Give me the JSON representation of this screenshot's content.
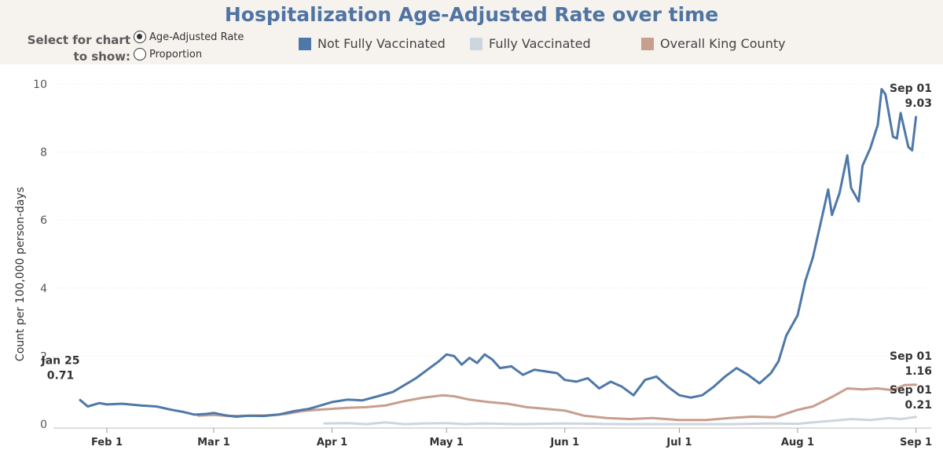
{
  "title": "Hospitalization Age-Adjusted Rate over time",
  "selector": {
    "label_line1": "Select for chart",
    "label_line2": "to show:",
    "options": [
      "Age-Adjusted Rate",
      "Proportion"
    ],
    "selected": "Age-Adjusted Rate"
  },
  "legend": [
    {
      "name": "Not Fully Vaccinated",
      "color": "#4e78a8"
    },
    {
      "name": "Fully Vaccinated",
      "color": "#cdd5df"
    },
    {
      "name": "Overall King County",
      "color": "#c89e8e"
    }
  ],
  "chart_data": {
    "type": "line",
    "ylabel": "Count per 100,000 person-days",
    "ylim": [
      0,
      10
    ],
    "yticks": [
      0,
      2,
      4,
      6,
      8,
      10
    ],
    "xticks": [
      {
        "date": "2021-02-01",
        "label": "Feb 1"
      },
      {
        "date": "2021-03-01",
        "label": "Mar 1"
      },
      {
        "date": "2021-04-01",
        "label": "Apr 1"
      },
      {
        "date": "2021-05-01",
        "label": "May 1"
      },
      {
        "date": "2021-06-01",
        "label": "Jun 1"
      },
      {
        "date": "2021-07-01",
        "label": "Jul 1"
      },
      {
        "date": "2021-08-01",
        "label": "Aug 1"
      },
      {
        "date": "2021-09-01",
        "label": "Sep 1"
      }
    ],
    "grid": true,
    "series": [
      {
        "name": "Not Fully Vaccinated",
        "color": "#4e78a8",
        "points": [
          [
            "2021-01-25",
            0.71
          ],
          [
            "2021-01-27",
            0.52
          ],
          [
            "2021-01-30",
            0.62
          ],
          [
            "2021-02-01",
            0.58
          ],
          [
            "2021-02-05",
            0.6
          ],
          [
            "2021-02-10",
            0.55
          ],
          [
            "2021-02-14",
            0.52
          ],
          [
            "2021-02-18",
            0.42
          ],
          [
            "2021-02-21",
            0.36
          ],
          [
            "2021-02-24",
            0.28
          ],
          [
            "2021-02-27",
            0.3
          ],
          [
            "2021-03-01",
            0.33
          ],
          [
            "2021-03-04",
            0.26
          ],
          [
            "2021-03-07",
            0.22
          ],
          [
            "2021-03-10",
            0.25
          ],
          [
            "2021-03-14",
            0.24
          ],
          [
            "2021-03-18",
            0.28
          ],
          [
            "2021-03-22",
            0.38
          ],
          [
            "2021-03-26",
            0.45
          ],
          [
            "2021-03-29",
            0.55
          ],
          [
            "2021-04-01",
            0.65
          ],
          [
            "2021-04-05",
            0.72
          ],
          [
            "2021-04-09",
            0.7
          ],
          [
            "2021-04-13",
            0.82
          ],
          [
            "2021-04-17",
            0.95
          ],
          [
            "2021-04-20",
            1.15
          ],
          [
            "2021-04-23",
            1.35
          ],
          [
            "2021-04-26",
            1.6
          ],
          [
            "2021-04-29",
            1.85
          ],
          [
            "2021-05-01",
            2.05
          ],
          [
            "2021-05-03",
            2.0
          ],
          [
            "2021-05-05",
            1.75
          ],
          [
            "2021-05-07",
            1.95
          ],
          [
            "2021-05-09",
            1.8
          ],
          [
            "2021-05-11",
            2.05
          ],
          [
            "2021-05-13",
            1.9
          ],
          [
            "2021-05-15",
            1.65
          ],
          [
            "2021-05-18",
            1.7
          ],
          [
            "2021-05-21",
            1.45
          ],
          [
            "2021-05-24",
            1.6
          ],
          [
            "2021-05-27",
            1.55
          ],
          [
            "2021-05-30",
            1.5
          ],
          [
            "2021-06-01",
            1.3
          ],
          [
            "2021-06-04",
            1.25
          ],
          [
            "2021-06-07",
            1.35
          ],
          [
            "2021-06-10",
            1.05
          ],
          [
            "2021-06-13",
            1.25
          ],
          [
            "2021-06-16",
            1.1
          ],
          [
            "2021-06-19",
            0.85
          ],
          [
            "2021-06-22",
            1.3
          ],
          [
            "2021-06-25",
            1.4
          ],
          [
            "2021-06-28",
            1.1
          ],
          [
            "2021-07-01",
            0.85
          ],
          [
            "2021-07-04",
            0.78
          ],
          [
            "2021-07-07",
            0.85
          ],
          [
            "2021-07-10",
            1.1
          ],
          [
            "2021-07-13",
            1.4
          ],
          [
            "2021-07-16",
            1.65
          ],
          [
            "2021-07-19",
            1.45
          ],
          [
            "2021-07-22",
            1.2
          ],
          [
            "2021-07-25",
            1.5
          ],
          [
            "2021-07-27",
            1.85
          ],
          [
            "2021-07-29",
            2.6
          ],
          [
            "2021-08-01",
            3.2
          ],
          [
            "2021-08-03",
            4.2
          ],
          [
            "2021-08-05",
            4.9
          ],
          [
            "2021-08-07",
            5.9
          ],
          [
            "2021-08-09",
            6.9
          ],
          [
            "2021-08-10",
            6.15
          ],
          [
            "2021-08-12",
            6.8
          ],
          [
            "2021-08-14",
            7.9
          ],
          [
            "2021-08-15",
            6.95
          ],
          [
            "2021-08-17",
            6.55
          ],
          [
            "2021-08-18",
            7.6
          ],
          [
            "2021-08-20",
            8.1
          ],
          [
            "2021-08-22",
            8.8
          ],
          [
            "2021-08-23",
            9.85
          ],
          [
            "2021-08-24",
            9.7
          ],
          [
            "2021-08-26",
            8.45
          ],
          [
            "2021-08-27",
            8.4
          ],
          [
            "2021-08-28",
            9.15
          ],
          [
            "2021-08-30",
            8.15
          ],
          [
            "2021-08-31",
            8.05
          ],
          [
            "2021-09-01",
            9.03
          ]
        ]
      },
      {
        "name": "Fully Vaccinated",
        "color": "#cdd5df",
        "points": [
          [
            "2021-03-30",
            0.02
          ],
          [
            "2021-04-05",
            0.03
          ],
          [
            "2021-04-10",
            0.0
          ],
          [
            "2021-04-15",
            0.05
          ],
          [
            "2021-04-20",
            0.0
          ],
          [
            "2021-04-25",
            0.02
          ],
          [
            "2021-05-01",
            0.03
          ],
          [
            "2021-05-06",
            0.0
          ],
          [
            "2021-05-10",
            0.02
          ],
          [
            "2021-05-20",
            0.0
          ],
          [
            "2021-06-01",
            0.02
          ],
          [
            "2021-06-15",
            0.0
          ],
          [
            "2021-07-01",
            0.0
          ],
          [
            "2021-07-15",
            0.0
          ],
          [
            "2021-07-25",
            0.02
          ],
          [
            "2021-08-01",
            0.01
          ],
          [
            "2021-08-05",
            0.05
          ],
          [
            "2021-08-10",
            0.1
          ],
          [
            "2021-08-15",
            0.15
          ],
          [
            "2021-08-20",
            0.12
          ],
          [
            "2021-08-25",
            0.18
          ],
          [
            "2021-08-28",
            0.15
          ],
          [
            "2021-09-01",
            0.21
          ]
        ]
      },
      {
        "name": "Overall King County",
        "color": "#c89e8e",
        "points": [
          [
            "2021-02-25",
            0.25
          ],
          [
            "2021-03-01",
            0.27
          ],
          [
            "2021-03-05",
            0.24
          ],
          [
            "2021-03-10",
            0.25
          ],
          [
            "2021-03-15",
            0.26
          ],
          [
            "2021-03-20",
            0.3
          ],
          [
            "2021-03-24",
            0.38
          ],
          [
            "2021-03-28",
            0.42
          ],
          [
            "2021-04-01",
            0.45
          ],
          [
            "2021-04-05",
            0.48
          ],
          [
            "2021-04-10",
            0.5
          ],
          [
            "2021-04-15",
            0.55
          ],
          [
            "2021-04-20",
            0.68
          ],
          [
            "2021-04-25",
            0.78
          ],
          [
            "2021-04-30",
            0.85
          ],
          [
            "2021-05-03",
            0.82
          ],
          [
            "2021-05-07",
            0.72
          ],
          [
            "2021-05-12",
            0.65
          ],
          [
            "2021-05-17",
            0.6
          ],
          [
            "2021-05-22",
            0.5
          ],
          [
            "2021-05-27",
            0.45
          ],
          [
            "2021-06-01",
            0.4
          ],
          [
            "2021-06-06",
            0.25
          ],
          [
            "2021-06-12",
            0.18
          ],
          [
            "2021-06-18",
            0.15
          ],
          [
            "2021-06-24",
            0.18
          ],
          [
            "2021-07-01",
            0.12
          ],
          [
            "2021-07-08",
            0.12
          ],
          [
            "2021-07-14",
            0.18
          ],
          [
            "2021-07-20",
            0.22
          ],
          [
            "2021-07-26",
            0.2
          ],
          [
            "2021-08-01",
            0.42
          ],
          [
            "2021-08-05",
            0.52
          ],
          [
            "2021-08-10",
            0.8
          ],
          [
            "2021-08-14",
            1.05
          ],
          [
            "2021-08-18",
            1.02
          ],
          [
            "2021-08-22",
            1.05
          ],
          [
            "2021-08-26",
            1.0
          ],
          [
            "2021-08-29",
            1.15
          ],
          [
            "2021-09-01",
            1.16
          ]
        ]
      }
    ],
    "annotations": [
      {
        "date_text": "Jan 25",
        "value_text": "0.71"
      },
      {
        "date_text": "Sep 01",
        "value_text": "9.03"
      },
      {
        "date_text": "Sep 01",
        "value_text": "1.16"
      },
      {
        "date_text": "Sep 01",
        "value_text": "0.21"
      }
    ]
  }
}
